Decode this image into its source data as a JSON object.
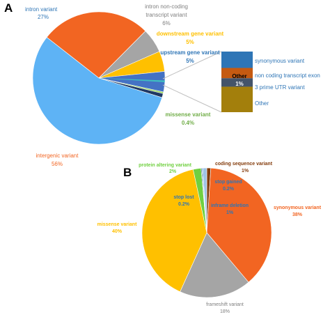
{
  "chart_data": [
    {
      "type": "pie",
      "panel": "A",
      "slices": [
        {
          "label": "intron variant",
          "pct_label": "27%",
          "value": 27,
          "color": "#f26522"
        },
        {
          "label": "intron non-coding transcript variant",
          "pct_label": "6%",
          "value": 6,
          "color": "#a5a5a5"
        },
        {
          "label": "downstream gene variant",
          "pct_label": "5%",
          "value": 5,
          "color": "#ffc000"
        },
        {
          "label": "upstream gene variant",
          "pct_label": "5%",
          "value": 5,
          "color": "#4472c4"
        },
        {
          "label": "missense variant",
          "pct_label": "0.4%",
          "value": 0.4,
          "color": "#92d050"
        },
        {
          "label": "Other",
          "pct_label": "1%",
          "value": 1,
          "color": "#203864"
        },
        {
          "label": "intergenic variant",
          "pct_label": "56%",
          "value": 56,
          "color": "#5eb3f5"
        }
      ],
      "other_breakdown": {
        "label": "Other",
        "pct_label": "1%",
        "items": [
          {
            "label": "synonymous variant",
            "value": 27,
            "color": "#2e75b6"
          },
          {
            "label": "non coding transcript exon",
            "value": 17,
            "color": "#c55a11"
          },
          {
            "label": "3 prime UTR variant",
            "value": 14,
            "color": "#44546a"
          },
          {
            "label": "Other",
            "value": 42,
            "color": "#a37f0c"
          }
        ]
      }
    },
    {
      "type": "pie",
      "panel": "B",
      "slices": [
        {
          "label": "coding sequence variant",
          "pct_label": "1%",
          "value": 1,
          "color": "#843c0c"
        },
        {
          "label": "synonymous variant",
          "pct_label": "38%",
          "value": 38,
          "color": "#f26522"
        },
        {
          "label": "frameshift variant",
          "pct_label": "18%",
          "value": 18,
          "color": "#a5a5a5"
        },
        {
          "label": "missense variant",
          "pct_label": "40%",
          "value": 40,
          "color": "#ffc000"
        },
        {
          "label": "protein altering variant",
          "pct_label": "2%",
          "value": 2,
          "color": "#70d040"
        },
        {
          "label": "stop lost",
          "pct_label": "0.2%",
          "value": 0.2,
          "color": "#1f4e79"
        },
        {
          "label": "stop gained",
          "pct_label": "0.2%",
          "value": 0.2,
          "color": "#2e75b6"
        },
        {
          "label": "inframe deletion",
          "pct_label": "1%",
          "value": 1,
          "color": "#9dc3e6"
        }
      ]
    }
  ],
  "panels": {
    "a": "A",
    "b": "B"
  },
  "colors": {
    "connector": "#bfbfbf",
    "cyan_sliver": "#3fbfbf"
  }
}
